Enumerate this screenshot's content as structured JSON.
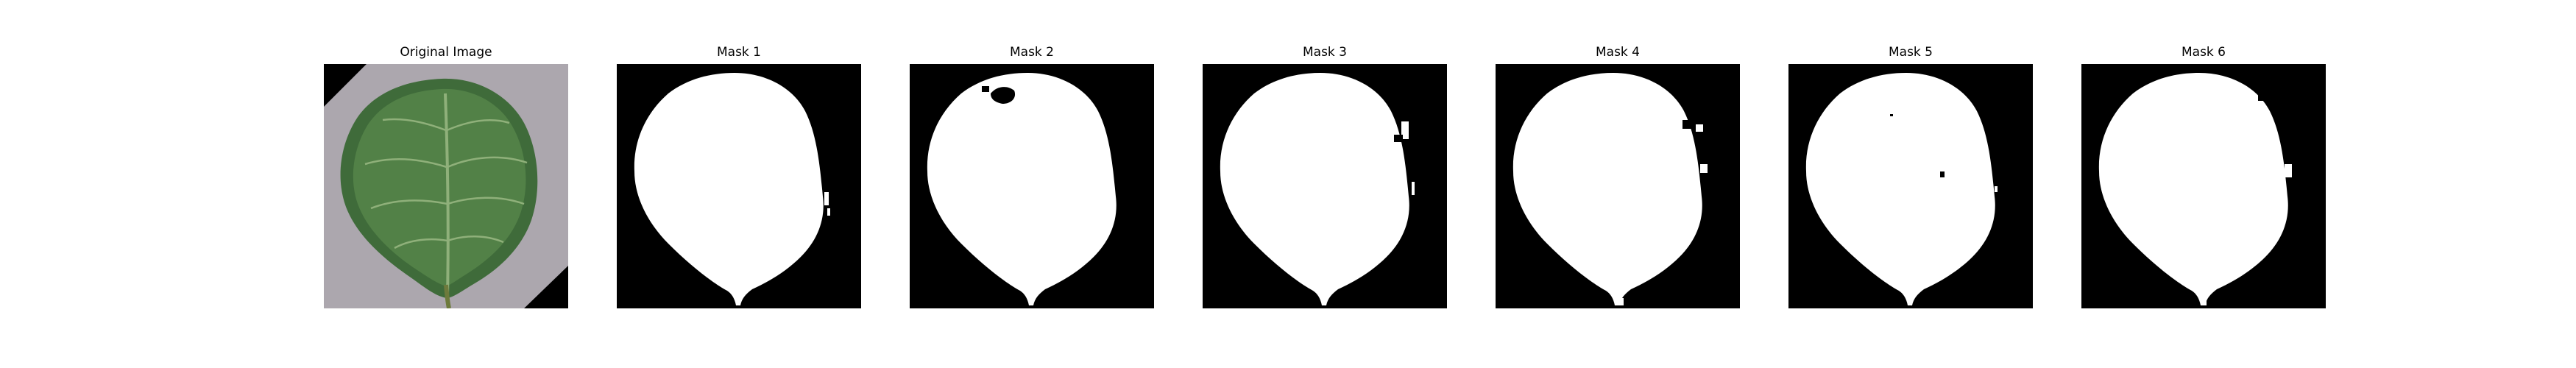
{
  "figure": {
    "panels": [
      {
        "title": "Original Image",
        "kind": "photo",
        "content": "leaf-photo"
      },
      {
        "title": "Mask 1",
        "kind": "mask"
      },
      {
        "title": "Mask 2",
        "kind": "mask"
      },
      {
        "title": "Mask 3",
        "kind": "mask"
      },
      {
        "title": "Mask 4",
        "kind": "mask"
      },
      {
        "title": "Mask 5",
        "kind": "mask"
      },
      {
        "title": "Mask 6",
        "kind": "mask"
      }
    ],
    "colors": {
      "background": "#ffffff",
      "mask_background": "#000000",
      "mask_foreground": "#ffffff",
      "photo_backdrop": "#a9a4ab",
      "leaf_dark": "#3f6b3a",
      "leaf_mid": "#57874b",
      "leaf_vein": "#8fb07a",
      "stem": "#6d7a3c"
    }
  }
}
